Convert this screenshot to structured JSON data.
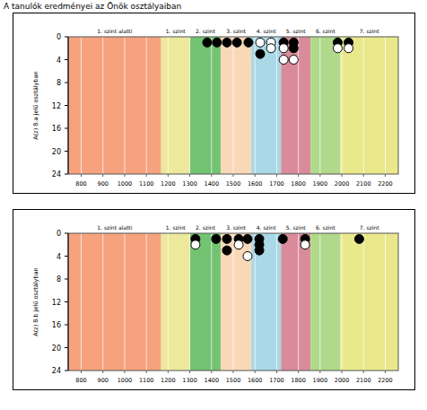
{
  "title": "A tanulók eredményei az Önök osztályaiban",
  "chart_data": [
    {
      "type": "scatter",
      "y_label": "A(z) 8.a jelű osztályban",
      "xlim": [
        740,
        2260
      ],
      "ylim": [
        0,
        24
      ],
      "xticks": [
        800,
        900,
        1000,
        1100,
        1200,
        1300,
        1400,
        1500,
        1600,
        1700,
        1800,
        1900,
        2000,
        2100,
        2200
      ],
      "yticks": [
        0,
        4,
        8,
        12,
        16,
        20,
        24
      ],
      "grid": true,
      "bands": [
        {
          "label": "1. szint alatti",
          "from": 740,
          "to": 1168,
          "color": "#f6a27e"
        },
        {
          "label": "1. szint",
          "from": 1168,
          "to": 1301,
          "color": "#ece99c"
        },
        {
          "label": "2. szint",
          "from": 1301,
          "to": 1442,
          "color": "#72c472"
        },
        {
          "label": "3. szint",
          "from": 1442,
          "to": 1583,
          "color": "#f9d8b8"
        },
        {
          "label": "4. szint",
          "from": 1583,
          "to": 1720,
          "color": "#a9d8e6"
        },
        {
          "label": "5. szint",
          "from": 1720,
          "to": 1856,
          "color": "#d98b9c"
        },
        {
          "label": "6. szint",
          "from": 1856,
          "to": 1993,
          "color": "#b0d98b"
        },
        {
          "label": "7. szint",
          "from": 1993,
          "to": 2260,
          "color": "#e9e98c"
        }
      ],
      "series": [
        {
          "color": "#000000",
          "marker": "circle",
          "x": [
            1380,
            1425,
            1471,
            1517,
            1570,
            1624,
            1732,
            1778,
            1778,
            1981,
            2031
          ],
          "values": [
            1,
            1,
            1,
            1,
            1,
            3,
            1,
            1,
            2,
            1,
            1
          ]
        },
        {
          "color": "#ffffff",
          "marker": "circle",
          "x": [
            1624,
            1674,
            1674,
            1732,
            1732,
            1778,
            1981,
            2031
          ],
          "values": [
            1,
            1,
            2,
            2,
            4,
            4,
            2,
            2
          ]
        }
      ]
    },
    {
      "type": "scatter",
      "y_label": "A(z) 8.b jelű osztályban",
      "xlim": [
        740,
        2260
      ],
      "ylim": [
        0,
        24
      ],
      "xticks": [
        800,
        900,
        1000,
        1100,
        1200,
        1300,
        1400,
        1500,
        1600,
        1700,
        1800,
        1900,
        2000,
        2100,
        2200
      ],
      "yticks": [
        0,
        4,
        8,
        12,
        16,
        20,
        24
      ],
      "grid": true,
      "bands": [
        {
          "label": "1. szint alatti",
          "from": 740,
          "to": 1168,
          "color": "#f6a27e"
        },
        {
          "label": "1. szint",
          "from": 1168,
          "to": 1301,
          "color": "#ece99c"
        },
        {
          "label": "2. szint",
          "from": 1301,
          "to": 1442,
          "color": "#72c472"
        },
        {
          "label": "3. szint",
          "from": 1442,
          "to": 1583,
          "color": "#f9d8b8"
        },
        {
          "label": "4. szint",
          "from": 1583,
          "to": 1720,
          "color": "#a9d8e6"
        },
        {
          "label": "5. szint",
          "from": 1720,
          "to": 1856,
          "color": "#d98b9c"
        },
        {
          "label": "6. szint",
          "from": 1856,
          "to": 1993,
          "color": "#b0d98b"
        },
        {
          "label": "7. szint",
          "from": 1993,
          "to": 2260,
          "color": "#e9e98c"
        }
      ],
      "series": [
        {
          "color": "#000000",
          "marker": "circle",
          "x": [
            1326,
            1421,
            1471,
            1471,
            1525,
            1566,
            1620,
            1620,
            1620,
            1728,
            1831,
            2080
          ],
          "values": [
            1,
            1,
            1,
            3,
            1,
            1,
            1,
            2,
            3,
            1,
            1,
            1
          ]
        },
        {
          "color": "#ffffff",
          "marker": "circle",
          "x": [
            1326,
            1525,
            1566,
            1831
          ],
          "values": [
            2,
            2,
            4,
            2
          ]
        }
      ]
    }
  ]
}
